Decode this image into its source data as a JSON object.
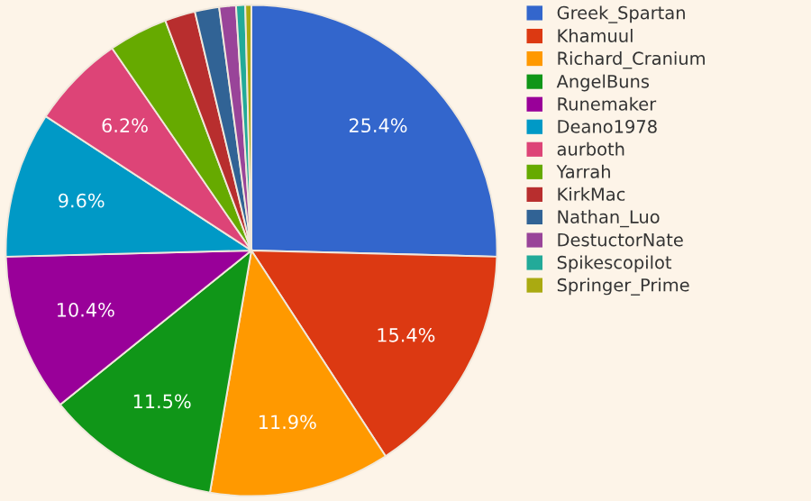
{
  "chart_data": {
    "type": "pie",
    "categories": [
      "Greek_Spartan",
      "Khamuul",
      "Richard_Cranium",
      "AngelBuns",
      "Runemaker",
      "Deano1978",
      "aurboth",
      "Yarrah",
      "KirkMac",
      "Nathan_Luo",
      "DestuctorNate",
      "Spikescopilot",
      "Springer_Prime"
    ],
    "values": [
      25.4,
      15.4,
      11.9,
      11.5,
      10.4,
      9.6,
      6.2,
      3.9,
      2.0,
      1.6,
      1.1,
      0.6,
      0.4
    ],
    "value_labels": [
      "25.4%",
      "15.4%",
      "11.9%",
      "11.5%",
      "10.4%",
      "9.6%",
      "6.2%",
      null,
      null,
      null,
      null,
      null,
      null
    ],
    "colors": [
      "#3366cc",
      "#dc3912",
      "#ff9900",
      "#109618",
      "#990099",
      "#0099c6",
      "#dd4477",
      "#66aa00",
      "#b82e2e",
      "#316395",
      "#994499",
      "#22aa99",
      "#aaaa11"
    ],
    "legend": "right"
  }
}
